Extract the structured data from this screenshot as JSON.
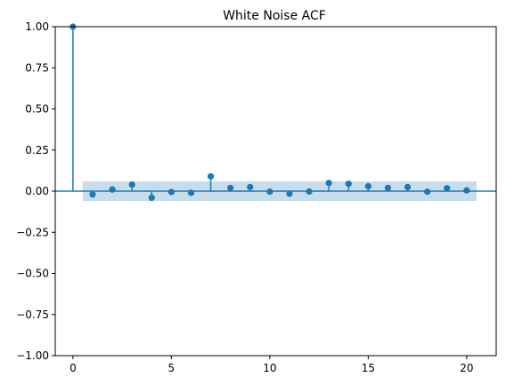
{
  "chart_data": {
    "type": "stem",
    "title": "White Noise ACF",
    "xlabel": "",
    "ylabel": "",
    "xlim": [
      -0.9,
      21.5
    ],
    "ylim": [
      -1.0,
      1.0
    ],
    "xticks": [
      0,
      5,
      10,
      15,
      20
    ],
    "xtick_labels": [
      "0",
      "5",
      "10",
      "15",
      "20"
    ],
    "yticks": [
      1.0,
      0.75,
      0.5,
      0.25,
      0.0,
      -0.25,
      -0.5,
      -0.75,
      -1.0
    ],
    "ytick_labels": [
      "1.00",
      "0.75",
      "0.50",
      "0.25",
      "0.00",
      "−0.25",
      "−0.50",
      "−0.75",
      "−1.00"
    ],
    "grid": false,
    "lags": [
      0,
      1,
      2,
      3,
      4,
      5,
      6,
      7,
      8,
      9,
      10,
      11,
      12,
      13,
      14,
      15,
      16,
      17,
      18,
      19,
      20
    ],
    "values": [
      1.0,
      -0.02,
      0.01,
      0.04,
      -0.04,
      -0.005,
      -0.01,
      0.09,
      0.02,
      0.025,
      -0.003,
      -0.015,
      -0.002,
      0.05,
      0.045,
      0.03,
      0.02,
      0.025,
      -0.003,
      0.018,
      0.005
    ],
    "confidence_band": {
      "lower": -0.06,
      "upper": 0.06,
      "x_range": [
        0.5,
        20.5
      ]
    },
    "colors": {
      "series": "#1f77b4",
      "band": "#1f77b4",
      "band_opacity": 0.25
    }
  }
}
